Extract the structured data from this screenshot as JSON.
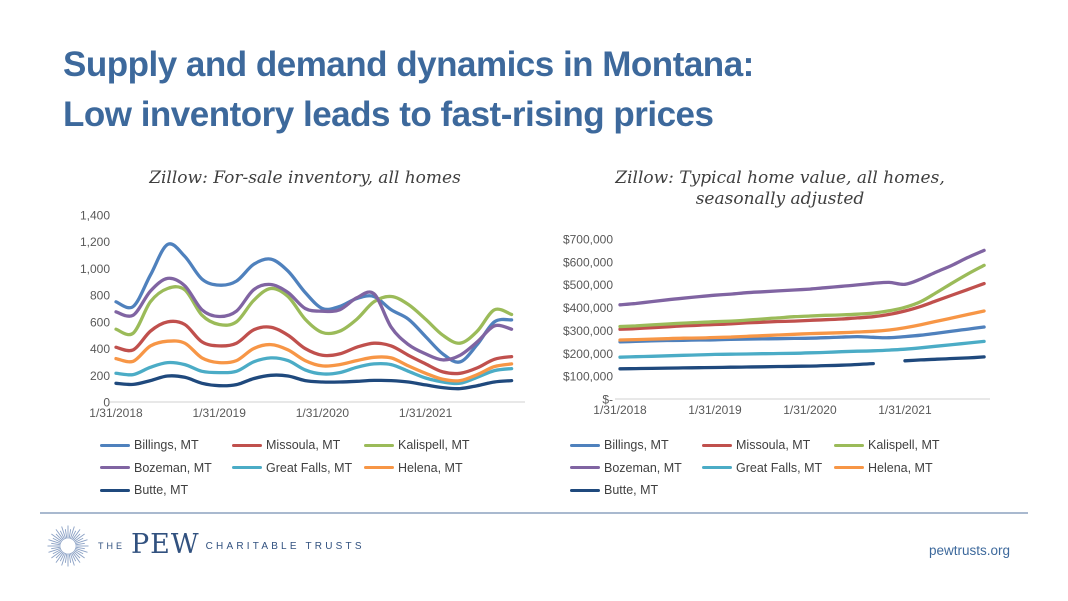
{
  "slide": {
    "title_lines": [
      "Supply and demand dynamics in Montana:",
      "Low inventory leads to fast-rising prices"
    ],
    "title_color": "#3d699c"
  },
  "footer": {
    "logo": {
      "the": "THE",
      "pew": "PEW",
      "rest": "CHARITABLE TRUSTS",
      "icon": "sunburst-icon",
      "color": "#31517f"
    },
    "website": "pewtrusts.org"
  },
  "palette": {
    "billings": "#4F81BD",
    "missoula": "#C0504D",
    "kalispell": "#9BBB59",
    "bozeman": "#8064A2",
    "great_falls": "#4BACC6",
    "helena": "#F79646",
    "butte": "#1F497D",
    "axis_text": "#595959",
    "baseline": "#d9d9d9"
  },
  "chart_data": [
    {
      "type": "line",
      "title": "Zillow: For-sale inventory, all homes",
      "title_lines": [
        "Zillow: For-sale inventory, all homes"
      ],
      "x_months": [
        "Jan 2018",
        "Mar 2018",
        "May 2018",
        "Jul 2018",
        "Sep 2018",
        "Nov 2018",
        "Jan 2019",
        "Mar 2019",
        "May 2019",
        "Jul 2019",
        "Sep 2019",
        "Nov 2019",
        "Jan 2020",
        "Mar 2020",
        "May 2020",
        "Jul 2020",
        "Sep 2020",
        "Nov 2020",
        "Jan 2021",
        "Mar 2021",
        "May 2021",
        "Jul 2021",
        "Sep 2021",
        "Nov 2021"
      ],
      "x_tick_labels": [
        "1/31/2018",
        "1/31/2019",
        "1/31/2020",
        "1/31/2021"
      ],
      "x_tick_indices": [
        0,
        6,
        12,
        18
      ],
      "ylim": [
        0,
        1400
      ],
      "ytick_values": [
        0,
        200,
        400,
        600,
        800,
        1000,
        1200,
        1400
      ],
      "ytick_labels": [
        "0",
        "200",
        "400",
        "600",
        "800",
        "1,000",
        "1,200",
        "1,400"
      ],
      "grid": "baseline-only",
      "legend_position": "bottom",
      "series": [
        {
          "name": "Billings, MT",
          "color": "#4F81BD",
          "values": [
            750,
            715,
            950,
            1180,
            1090,
            920,
            875,
            905,
            1030,
            1070,
            980,
            820,
            700,
            715,
            775,
            790,
            690,
            620,
            490,
            360,
            300,
            430,
            600,
            615
          ]
        },
        {
          "name": "Missoula, MT",
          "color": "#C0504D",
          "values": [
            410,
            390,
            530,
            600,
            580,
            450,
            420,
            440,
            540,
            560,
            500,
            400,
            350,
            360,
            410,
            440,
            420,
            350,
            285,
            225,
            215,
            255,
            320,
            340
          ]
        },
        {
          "name": "Kalispell, MT",
          "color": "#9BBB59",
          "values": [
            545,
            515,
            750,
            850,
            840,
            650,
            580,
            600,
            760,
            850,
            790,
            620,
            520,
            530,
            620,
            750,
            790,
            730,
            620,
            500,
            440,
            530,
            690,
            655
          ]
        },
        {
          "name": "Bozeman, MT",
          "color": "#8064A2",
          "values": [
            675,
            650,
            830,
            925,
            870,
            690,
            640,
            680,
            840,
            880,
            820,
            700,
            680,
            690,
            780,
            810,
            560,
            430,
            360,
            315,
            350,
            450,
            570,
            545
          ]
        },
        {
          "name": "Great Falls, MT",
          "color": "#4BACC6",
          "values": [
            215,
            205,
            260,
            295,
            280,
            230,
            220,
            230,
            300,
            330,
            310,
            240,
            210,
            220,
            260,
            285,
            280,
            230,
            180,
            150,
            140,
            185,
            235,
            250
          ]
        },
        {
          "name": "Helena, MT",
          "color": "#F79646",
          "values": [
            325,
            305,
            420,
            455,
            440,
            330,
            295,
            310,
            400,
            430,
            390,
            310,
            270,
            280,
            310,
            335,
            330,
            270,
            215,
            170,
            160,
            205,
            265,
            285
          ]
        },
        {
          "name": "Butte, MT",
          "color": "#1F497D",
          "values": [
            140,
            132,
            160,
            195,
            185,
            140,
            122,
            130,
            175,
            200,
            195,
            160,
            150,
            150,
            155,
            162,
            160,
            150,
            128,
            108,
            100,
            122,
            150,
            160
          ]
        }
      ]
    },
    {
      "type": "line",
      "title": "Zillow: Typical home value, all homes, seasonally adjusted",
      "title_lines": [
        "Zillow: Typical home value, all homes,",
        "seasonally adjusted"
      ],
      "x_months": [
        "Jan 2018",
        "Mar 2018",
        "May 2018",
        "Jul 2018",
        "Sep 2018",
        "Nov 2018",
        "Jan 2019",
        "Mar 2019",
        "May 2019",
        "Jul 2019",
        "Sep 2019",
        "Nov 2019",
        "Jan 2020",
        "Mar 2020",
        "May 2020",
        "Jul 2020",
        "Sep 2020",
        "Nov 2020",
        "Jan 2021",
        "Mar 2021",
        "May 2021",
        "Jul 2021",
        "Sep 2021",
        "Nov 2021"
      ],
      "x_tick_labels": [
        "1/31/2018",
        "1/31/2019",
        "1/31/2020",
        "1/31/2021"
      ],
      "x_tick_indices": [
        0,
        6,
        12,
        18
      ],
      "ylim": [
        0,
        700000
      ],
      "ytick_values": [
        0,
        100000,
        200000,
        300000,
        400000,
        500000,
        600000,
        700000
      ],
      "ytick_labels": [
        "$-",
        "$100,000",
        "$200,000",
        "$300,000",
        "$400,000",
        "$500,000",
        "$600,000",
        "$700,000"
      ],
      "grid": "baseline-only",
      "legend_position": "bottom",
      "values_unit": "USD",
      "series": [
        {
          "name": "Billings, MT",
          "color": "#4F81BD",
          "values": [
            250000,
            252000,
            254000,
            256000,
            257000,
            258000,
            259000,
            261000,
            262000,
            263000,
            264000,
            265000,
            266000,
            268000,
            271000,
            273000,
            270000,
            268000,
            273000,
            279000,
            288000,
            297000,
            306000,
            315000
          ]
        },
        {
          "name": "Missoula, MT",
          "color": "#C0504D",
          "values": [
            305000,
            308000,
            312000,
            316000,
            320000,
            323000,
            326000,
            329000,
            333000,
            336000,
            339000,
            341000,
            344000,
            347000,
            350000,
            355000,
            360000,
            370000,
            385000,
            405000,
            430000,
            455000,
            480000,
            505000
          ]
        },
        {
          "name": "Kalispell, MT",
          "color": "#9BBB59",
          "values": [
            317000,
            320000,
            324000,
            328000,
            332000,
            335000,
            338000,
            341000,
            345000,
            350000,
            355000,
            360000,
            363000,
            366000,
            368000,
            371000,
            376000,
            386000,
            401000,
            426000,
            466000,
            508000,
            548000,
            585000
          ]
        },
        {
          "name": "Bozeman, MT",
          "color": "#8064A2",
          "values": [
            412000,
            418000,
            426000,
            434000,
            441000,
            448000,
            454000,
            459000,
            465000,
            469000,
            473000,
            477000,
            481000,
            487000,
            493000,
            499000,
            506000,
            510000,
            502000,
            525000,
            556000,
            586000,
            620000,
            650000
          ]
        },
        {
          "name": "Great Falls, MT",
          "color": "#4BACC6",
          "values": [
            183000,
            185000,
            187000,
            189000,
            191000,
            193000,
            195000,
            196000,
            197000,
            198000,
            199000,
            200000,
            202000,
            204000,
            207000,
            209000,
            211000,
            214000,
            218000,
            224000,
            231000,
            238000,
            245000,
            252000
          ]
        },
        {
          "name": "Helena, MT",
          "color": "#F79646",
          "values": [
            258000,
            260000,
            262000,
            264000,
            266000,
            267000,
            269000,
            271000,
            274000,
            277000,
            280000,
            283000,
            286000,
            288000,
            290000,
            293000,
            296000,
            302000,
            312000,
            325000,
            340000,
            355000,
            370000,
            385000
          ]
        },
        {
          "name": "Butte, MT",
          "color": "#1F497D",
          "values": [
            132000,
            133000,
            134000,
            135000,
            136000,
            137000,
            138000,
            139000,
            140000,
            141000,
            142000,
            143000,
            144000,
            146000,
            148000,
            151000,
            155000,
            null,
            167000,
            171000,
            174000,
            177000,
            180000,
            184000
          ]
        }
      ]
    }
  ]
}
